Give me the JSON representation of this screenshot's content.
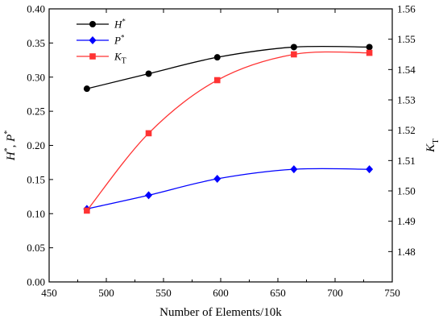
{
  "chart_data": {
    "type": "line",
    "xlabel": "Number of Elements/10k",
    "ylabel_left": {
      "main": "H",
      "sup1": "*",
      "sep": ", ",
      "main2": "P",
      "sup2": "*"
    },
    "ylabel_right": {
      "main": "K",
      "sub": "T"
    },
    "xlim": [
      450,
      750
    ],
    "ylim_left": [
      0.0,
      0.4
    ],
    "ylim_right": [
      1.47,
      1.56
    ],
    "x_ticks": [
      "450",
      "500",
      "550",
      "600",
      "650",
      "700",
      "750"
    ],
    "y_left_ticks": [
      "0.00",
      "0.05",
      "0.10",
      "0.15",
      "0.20",
      "0.25",
      "0.30",
      "0.35",
      "0.40"
    ],
    "y_right_ticks": [
      "1.48",
      "1.49",
      "1.50",
      "1.51",
      "1.52",
      "1.53",
      "1.54",
      "1.55",
      "1.56"
    ],
    "legend_position": "top-left",
    "x": [
      483,
      537,
      597,
      664,
      730
    ],
    "series": [
      {
        "name": "H",
        "name_sup": "*",
        "name_sub": "",
        "axis": "left",
        "marker": "circle",
        "color": "#000000",
        "values": [
          0.283,
          0.305,
          0.329,
          0.344,
          0.344
        ]
      },
      {
        "name": "P",
        "name_sup": "*",
        "name_sub": "",
        "axis": "left",
        "marker": "diamond",
        "color": "#0000ff",
        "values": [
          0.107,
          0.127,
          0.151,
          0.165,
          0.165
        ]
      },
      {
        "name": "K",
        "name_sup": "",
        "name_sub": "T",
        "axis": "right",
        "marker": "square",
        "color": "#ff3333",
        "values": [
          1.4935,
          1.519,
          1.5365,
          1.545,
          1.5455
        ]
      }
    ]
  }
}
